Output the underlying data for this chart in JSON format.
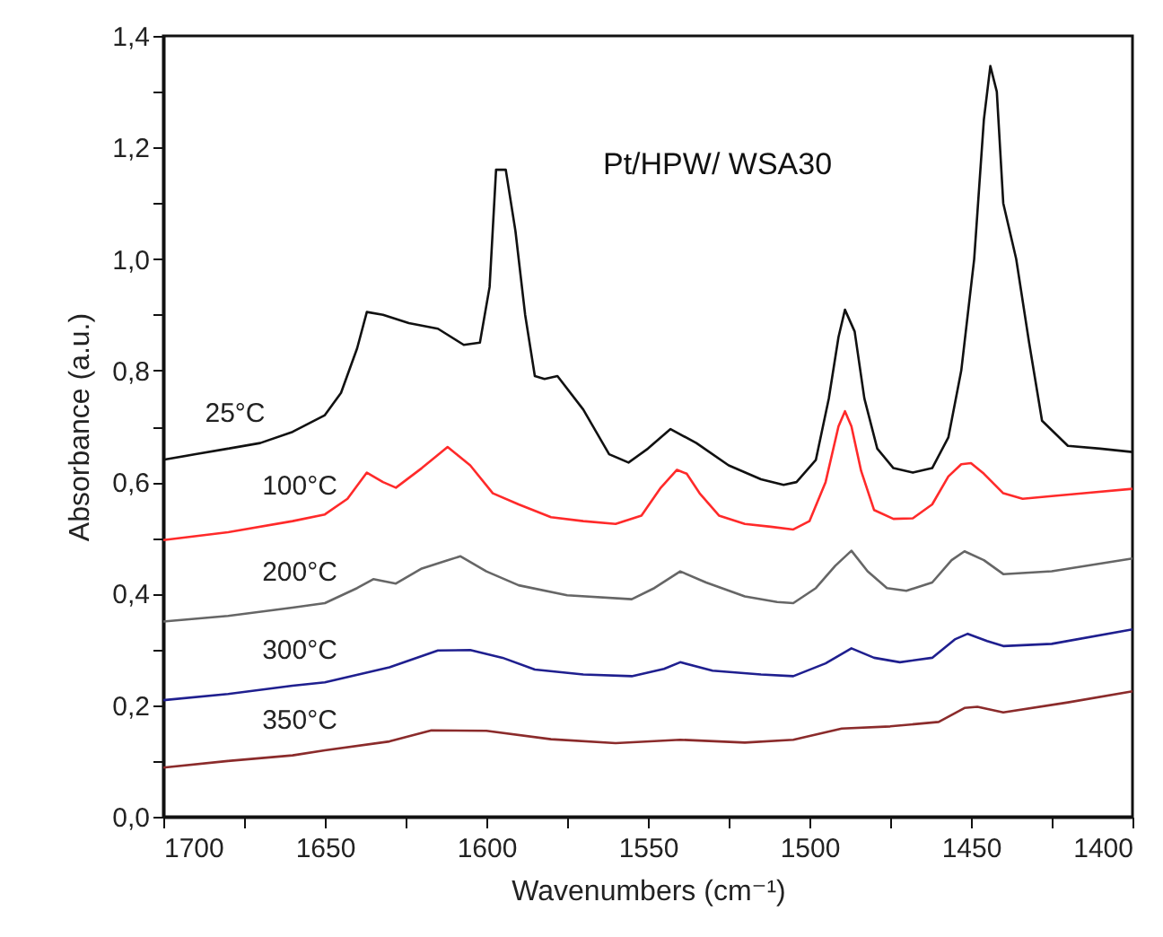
{
  "chart_data": {
    "type": "line",
    "xlabel": "Wavenumbers (cm⁻¹)",
    "ylabel": "Absorbance (a.u.)",
    "annotations": [
      "Pt/HPW/ WSA30"
    ],
    "xlim": [
      1700,
      1400
    ],
    "ylim": [
      0,
      1.4
    ],
    "xticks": [
      1700,
      {
        "value": 1675,
        "label": null
      },
      1650,
      {
        "value": 1625,
        "label": null
      },
      1600,
      {
        "value": 1575,
        "label": null
      },
      1550,
      {
        "value": 1525,
        "label": null
      },
      1500,
      {
        "value": 1475,
        "label": null
      },
      1450,
      {
        "value": 1425,
        "label": null
      },
      1400
    ],
    "yticks": [
      {
        "value": 0,
        "label": "0,0"
      },
      {
        "value": 0.1,
        "label": null
      },
      {
        "value": 0.2,
        "label": "0,2"
      },
      {
        "value": 0.3,
        "label": null
      },
      {
        "value": 0.4,
        "label": "0,4"
      },
      {
        "value": 0.5,
        "label": null
      },
      {
        "value": 0.6,
        "label": "0,6"
      },
      {
        "value": 0.7,
        "label": null
      },
      {
        "value": 0.8,
        "label": "0,8"
      },
      {
        "value": 0.9,
        "label": null
      },
      {
        "value": 1,
        "label": "1,0"
      },
      {
        "value": 1.1,
        "label": null
      },
      {
        "value": 1.2,
        "label": "1,2"
      },
      {
        "value": 1.3,
        "label": null
      },
      {
        "value": 1.4,
        "label": "1,4"
      }
    ],
    "grid": false,
    "legend": false,
    "marker": "none",
    "line_style": "solid",
    "series": [
      {
        "name": "25°C",
        "color": "#111111",
        "x": [
          1700,
          1690,
          1680,
          1670,
          1660,
          1650,
          1645,
          1640,
          1637,
          1632,
          1624,
          1615,
          1607,
          1602,
          1599,
          1597,
          1594,
          1591,
          1588,
          1585,
          1582,
          1578,
          1570,
          1562,
          1556,
          1550,
          1543,
          1535,
          1525,
          1515,
          1508,
          1504,
          1498,
          1494,
          1491,
          1489,
          1486,
          1483,
          1479,
          1474,
          1468,
          1462,
          1457,
          1453,
          1449,
          1446,
          1444,
          1442,
          1440,
          1436,
          1432,
          1428,
          1420,
          1410,
          1400
        ],
        "values": [
          0.64,
          0.65,
          0.66,
          0.67,
          0.69,
          0.72,
          0.76,
          0.84,
          0.905,
          0.9,
          0.885,
          0.875,
          0.846,
          0.85,
          0.95,
          1.16,
          1.16,
          1.05,
          0.9,
          0.79,
          0.785,
          0.79,
          0.73,
          0.65,
          0.635,
          0.66,
          0.695,
          0.67,
          0.63,
          0.605,
          0.595,
          0.6,
          0.64,
          0.75,
          0.86,
          0.909,
          0.87,
          0.75,
          0.66,
          0.625,
          0.617,
          0.625,
          0.68,
          0.8,
          1.0,
          1.25,
          1.346,
          1.3,
          1.1,
          1.0,
          0.85,
          0.71,
          0.665,
          0.66,
          0.654
        ]
      },
      {
        "name": "100°C",
        "color": "#ff2a2a",
        "x": [
          1700,
          1680,
          1660,
          1650,
          1643,
          1637,
          1632,
          1628,
          1620,
          1612,
          1605,
          1598,
          1590,
          1580,
          1570,
          1560,
          1552,
          1546,
          1541,
          1538,
          1534,
          1528,
          1520,
          1512,
          1505,
          1500,
          1495,
          1491,
          1489,
          1487,
          1484,
          1480,
          1474,
          1468,
          1462,
          1457,
          1453,
          1450,
          1446,
          1440,
          1434,
          1425,
          1415,
          1400
        ],
        "values": [
          0.496,
          0.51,
          0.53,
          0.542,
          0.57,
          0.617,
          0.6,
          0.59,
          0.625,
          0.663,
          0.63,
          0.58,
          0.56,
          0.537,
          0.53,
          0.525,
          0.54,
          0.59,
          0.622,
          0.615,
          0.58,
          0.54,
          0.525,
          0.52,
          0.515,
          0.53,
          0.6,
          0.7,
          0.727,
          0.7,
          0.62,
          0.55,
          0.534,
          0.535,
          0.56,
          0.61,
          0.632,
          0.634,
          0.615,
          0.58,
          0.57,
          0.575,
          0.58,
          0.588
        ]
      },
      {
        "name": "200°C",
        "color": "#666666",
        "x": [
          1700,
          1680,
          1660,
          1650,
          1640,
          1635,
          1628,
          1620,
          1612,
          1608,
          1600,
          1590,
          1575,
          1555,
          1548,
          1540,
          1532,
          1520,
          1510,
          1505,
          1498,
          1492,
          1487,
          1482,
          1476,
          1470,
          1462,
          1456,
          1452,
          1446,
          1440,
          1425,
          1400
        ],
        "values": [
          0.35,
          0.36,
          0.375,
          0.383,
          0.41,
          0.426,
          0.418,
          0.445,
          0.46,
          0.467,
          0.44,
          0.415,
          0.397,
          0.39,
          0.41,
          0.44,
          0.42,
          0.395,
          0.385,
          0.383,
          0.41,
          0.45,
          0.477,
          0.44,
          0.41,
          0.405,
          0.42,
          0.46,
          0.476,
          0.46,
          0.435,
          0.44,
          0.463
        ]
      },
      {
        "name": "300°C",
        "color": "#1f1f8f",
        "x": [
          1700,
          1680,
          1660,
          1650,
          1630,
          1615,
          1605,
          1595,
          1585,
          1570,
          1555,
          1545,
          1540,
          1530,
          1515,
          1505,
          1495,
          1487,
          1480,
          1472,
          1462,
          1455,
          1451,
          1445,
          1440,
          1425,
          1400
        ],
        "values": [
          0.209,
          0.22,
          0.235,
          0.241,
          0.268,
          0.298,
          0.299,
          0.285,
          0.264,
          0.255,
          0.252,
          0.265,
          0.277,
          0.262,
          0.255,
          0.252,
          0.275,
          0.302,
          0.285,
          0.277,
          0.285,
          0.318,
          0.328,
          0.315,
          0.306,
          0.31,
          0.336
        ]
      },
      {
        "name": "350°C",
        "color": "#8b2b2b",
        "x": [
          1700,
          1680,
          1660,
          1650,
          1630,
          1617,
          1600,
          1580,
          1560,
          1540,
          1520,
          1505,
          1490,
          1475,
          1460,
          1452,
          1448,
          1440,
          1420,
          1400
        ],
        "values": [
          0.088,
          0.1,
          0.11,
          0.119,
          0.135,
          0.155,
          0.154,
          0.139,
          0.132,
          0.138,
          0.133,
          0.138,
          0.158,
          0.162,
          0.17,
          0.195,
          0.197,
          0.187,
          0.205,
          0.225
        ]
      }
    ]
  }
}
